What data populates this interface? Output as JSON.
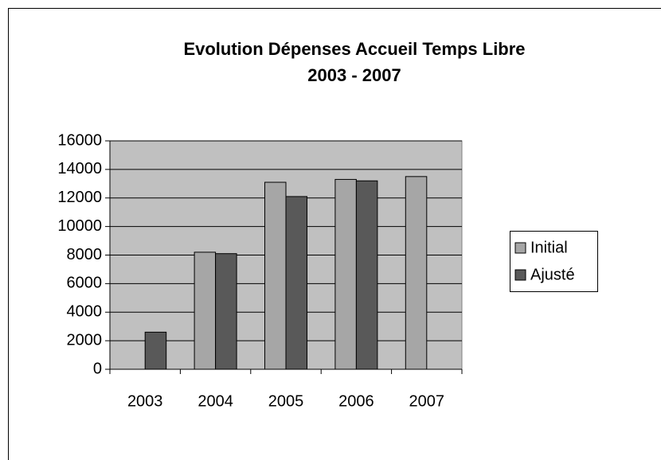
{
  "chart_data": {
    "type": "bar",
    "title": "Evolution Dépenses Accueil Temps Libre",
    "subtitle": "2003 - 2007",
    "categories": [
      "2003",
      "2004",
      "2005",
      "2006",
      "2007"
    ],
    "series": [
      {
        "name": "Initial",
        "color": "#a6a6a6",
        "values": [
          null,
          8200,
          13100,
          13300,
          13500
        ]
      },
      {
        "name": "Ajusté",
        "color": "#595959",
        "values": [
          2600,
          8100,
          12100,
          13200,
          null
        ]
      }
    ],
    "ylim": [
      0,
      16000
    ],
    "yticks": [
      0,
      2000,
      4000,
      6000,
      8000,
      10000,
      12000,
      14000,
      16000
    ],
    "grid": true,
    "legend": "right"
  }
}
